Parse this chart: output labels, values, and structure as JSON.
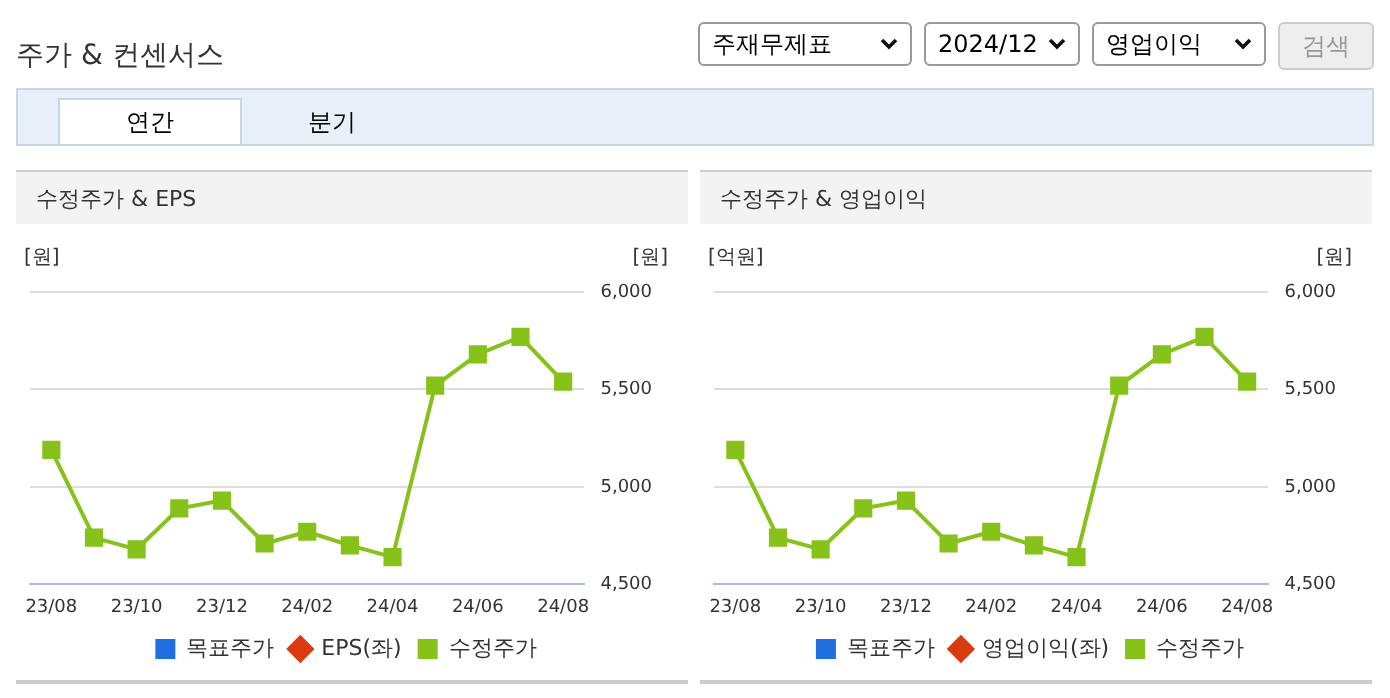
{
  "chart_data": [
    {
      "type": "other",
      "title": "주가 & 컨센서스",
      "annotations": [
        "주재무제표",
        "2024/12",
        "영업이익",
        "검색",
        "연간",
        "분기"
      ]
    },
    {
      "type": "line",
      "title": "수정주가 & EPS",
      "ylabel": "[원]",
      "y2label": "[원]",
      "categories": [
        "23/08",
        null,
        "23/10",
        null,
        "23/12",
        null,
        "24/02",
        null,
        "24/04",
        null,
        "24/06",
        null,
        "24/08"
      ],
      "y2lim": [
        4500,
        6000
      ],
      "y2ticks": [
        {
          "value": 4500,
          "label": "4,500"
        },
        {
          "value": 5000,
          "label": "5,000"
        },
        {
          "value": 5500,
          "label": "5,500"
        },
        {
          "value": 6000,
          "label": "6,000"
        }
      ],
      "grid": "y",
      "legend": "bottom",
      "series": [
        {
          "name": "목표주가",
          "color": "#1f6fe0",
          "marker": "square",
          "values": [
            null,
            null,
            null,
            null,
            null,
            null,
            null,
            null,
            null,
            null,
            null,
            null,
            null
          ]
        },
        {
          "name": "EPS(좌)",
          "color": "#d93a10",
          "marker": "diamond",
          "values": [
            null,
            null,
            null,
            null,
            null,
            null,
            null,
            null,
            null,
            null,
            null,
            null,
            null
          ]
        },
        {
          "name": "수정주가",
          "color": "#86c21a",
          "marker": "square",
          "axis": "y2",
          "values": [
            5190,
            4740,
            4680,
            4890,
            4930,
            4710,
            4770,
            4700,
            4640,
            5520,
            5680,
            5770,
            5540
          ]
        }
      ]
    },
    {
      "type": "line",
      "title": "수정주가 & 영업이익",
      "ylabel": "[억원]",
      "y2label": "[원]",
      "categories": [
        "23/08",
        null,
        "23/10",
        null,
        "23/12",
        null,
        "24/02",
        null,
        "24/04",
        null,
        "24/06",
        null,
        "24/08"
      ],
      "y2lim": [
        4500,
        6000
      ],
      "y2ticks": [
        {
          "value": 4500,
          "label": "4,500"
        },
        {
          "value": 5000,
          "label": "5,000"
        },
        {
          "value": 5500,
          "label": "5,500"
        },
        {
          "value": 6000,
          "label": "6,000"
        }
      ],
      "grid": "y",
      "legend": "bottom",
      "series": [
        {
          "name": "목표주가",
          "color": "#1f6fe0",
          "marker": "square",
          "values": [
            null,
            null,
            null,
            null,
            null,
            null,
            null,
            null,
            null,
            null,
            null,
            null,
            null
          ]
        },
        {
          "name": "영업이익(좌)",
          "color": "#d93a10",
          "marker": "diamond",
          "values": [
            null,
            null,
            null,
            null,
            null,
            null,
            null,
            null,
            null,
            null,
            null,
            null,
            null
          ]
        },
        {
          "name": "수정주가",
          "color": "#86c21a",
          "marker": "square",
          "axis": "y2",
          "values": [
            5190,
            4740,
            4680,
            4890,
            4930,
            4710,
            4770,
            4700,
            4640,
            5520,
            5680,
            5770,
            5540
          ]
        }
      ]
    }
  ]
}
